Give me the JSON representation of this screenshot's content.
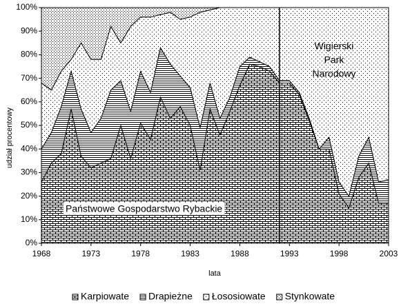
{
  "chart_data": {
    "type": "stacked_area_100",
    "x_label": "lata",
    "y_label": "udział procentowy",
    "x": [
      1968,
      1969,
      1970,
      1971,
      1972,
      1973,
      1974,
      1975,
      1976,
      1977,
      1978,
      1979,
      1980,
      1981,
      1982,
      1983,
      1984,
      1985,
      1986,
      1987,
      1988,
      1989,
      1990,
      1991,
      1992,
      1993,
      1994,
      1995,
      1996,
      1997,
      1998,
      1999,
      2000,
      2001,
      2002,
      2003
    ],
    "series": [
      {
        "name": "Karpiowate",
        "color": "#000000",
        "pattern": "brick",
        "values": [
          26,
          34,
          38,
          57,
          37,
          32,
          34,
          36,
          50,
          36,
          51,
          44,
          62,
          53,
          58,
          50,
          31,
          57,
          46,
          56,
          67,
          76,
          75,
          73,
          68,
          68,
          63,
          52,
          40,
          40,
          21,
          15,
          28,
          34,
          17,
          17
        ]
      },
      {
        "name": "Drapieżne",
        "color": "#000000",
        "pattern": "hlines",
        "values": [
          14,
          13,
          20,
          16,
          20,
          15,
          19,
          29,
          19,
          20,
          22,
          20,
          21,
          23,
          13,
          16,
          18,
          11,
          7,
          6,
          8,
          3,
          2,
          2,
          1,
          1,
          1,
          1,
          0,
          5,
          5,
          5,
          9,
          11,
          9,
          10
        ]
      },
      {
        "name": "Łososiowate",
        "color": "#000000",
        "pattern": "sparse-dots",
        "values": [
          28,
          18,
          15,
          5,
          28,
          31,
          25,
          27,
          16,
          36,
          23,
          32,
          14,
          22,
          24,
          30,
          49,
          31,
          47,
          38,
          25,
          21,
          23,
          25,
          31,
          31,
          36,
          47,
          60,
          55,
          74,
          80,
          63,
          55,
          74,
          73
        ]
      },
      {
        "name": "Stynkowate",
        "color": "#000000",
        "pattern": "dense-dots",
        "values": [
          32,
          35,
          27,
          22,
          15,
          22,
          22,
          8,
          15,
          8,
          4,
          4,
          3,
          2,
          5,
          4,
          2,
          1,
          0,
          0,
          0,
          0,
          0,
          0,
          0,
          0,
          0,
          0,
          0,
          0,
          0,
          0,
          0,
          0,
          0,
          0
        ]
      }
    ],
    "xlim": [
      1968,
      2003
    ],
    "xticks": [
      1968,
      1973,
      1978,
      1983,
      1988,
      1993,
      1998,
      2003
    ],
    "ylim": [
      0,
      100
    ],
    "yticks": [
      {
        "value": 0,
        "label": "0%"
      },
      {
        "value": 10,
        "label": "10%"
      },
      {
        "value": 20,
        "label": "20%"
      },
      {
        "value": 30,
        "label": "30%"
      },
      {
        "value": 40,
        "label": "40%"
      },
      {
        "value": 50,
        "label": "50%"
      },
      {
        "value": 60,
        "label": "60%"
      },
      {
        "value": 70,
        "label": "70%"
      },
      {
        "value": 80,
        "label": "80%"
      },
      {
        "value": 90,
        "label": "90%"
      },
      {
        "value": 100,
        "label": "100%"
      }
    ],
    "vertical_line": 1992,
    "annotations": [
      "Państwowe Gospodarstwo Rybackie",
      "Wigierski",
      "Park",
      "Narodowy"
    ],
    "legend": "bottom"
  }
}
